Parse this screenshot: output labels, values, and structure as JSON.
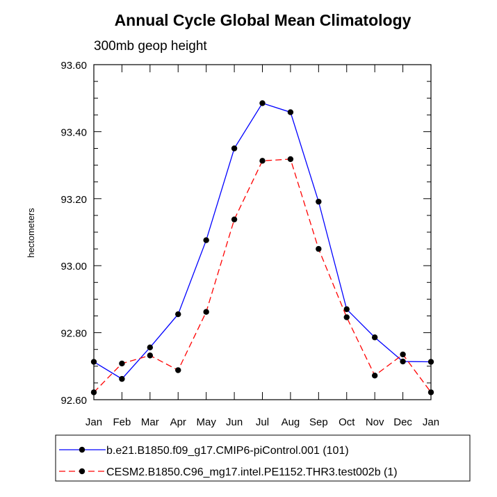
{
  "chart_data": {
    "type": "line",
    "title": "Annual Cycle Global Mean Climatology",
    "subtitle": "300mb geop height",
    "ylabel": "hectometers",
    "xlabel": "",
    "categories": [
      "Jan",
      "Feb",
      "Mar",
      "Apr",
      "May",
      "Jun",
      "Jul",
      "Aug",
      "Sep",
      "Oct",
      "Nov",
      "Dec",
      "Jan"
    ],
    "ylim": [
      92.6,
      93.6
    ],
    "yticks": [
      92.6,
      92.8,
      93.0,
      93.2,
      93.4,
      93.6
    ],
    "ytick_labels": [
      "92.60",
      "92.80",
      "93.00",
      "93.20",
      "93.40",
      "93.60"
    ],
    "legend_position": "bottom",
    "series": [
      {
        "name": "b.e21.B1850.f09_g17.CMIP6-piControl.001 (101)",
        "color": "#0000ff",
        "dash": "solid",
        "values": [
          92.713,
          92.662,
          92.756,
          92.855,
          93.076,
          93.35,
          93.485,
          93.458,
          93.191,
          92.87,
          92.786,
          92.714,
          92.713
        ]
      },
      {
        "name": "CESM2.B1850.C96_mg17.intel.PE1152.THR3.test002b (1)",
        "color": "#ff0000",
        "dash": "dashed",
        "values": [
          92.622,
          92.708,
          92.732,
          92.688,
          92.862,
          93.138,
          93.313,
          93.318,
          93.05,
          92.846,
          92.672,
          92.735,
          92.622
        ]
      }
    ]
  }
}
